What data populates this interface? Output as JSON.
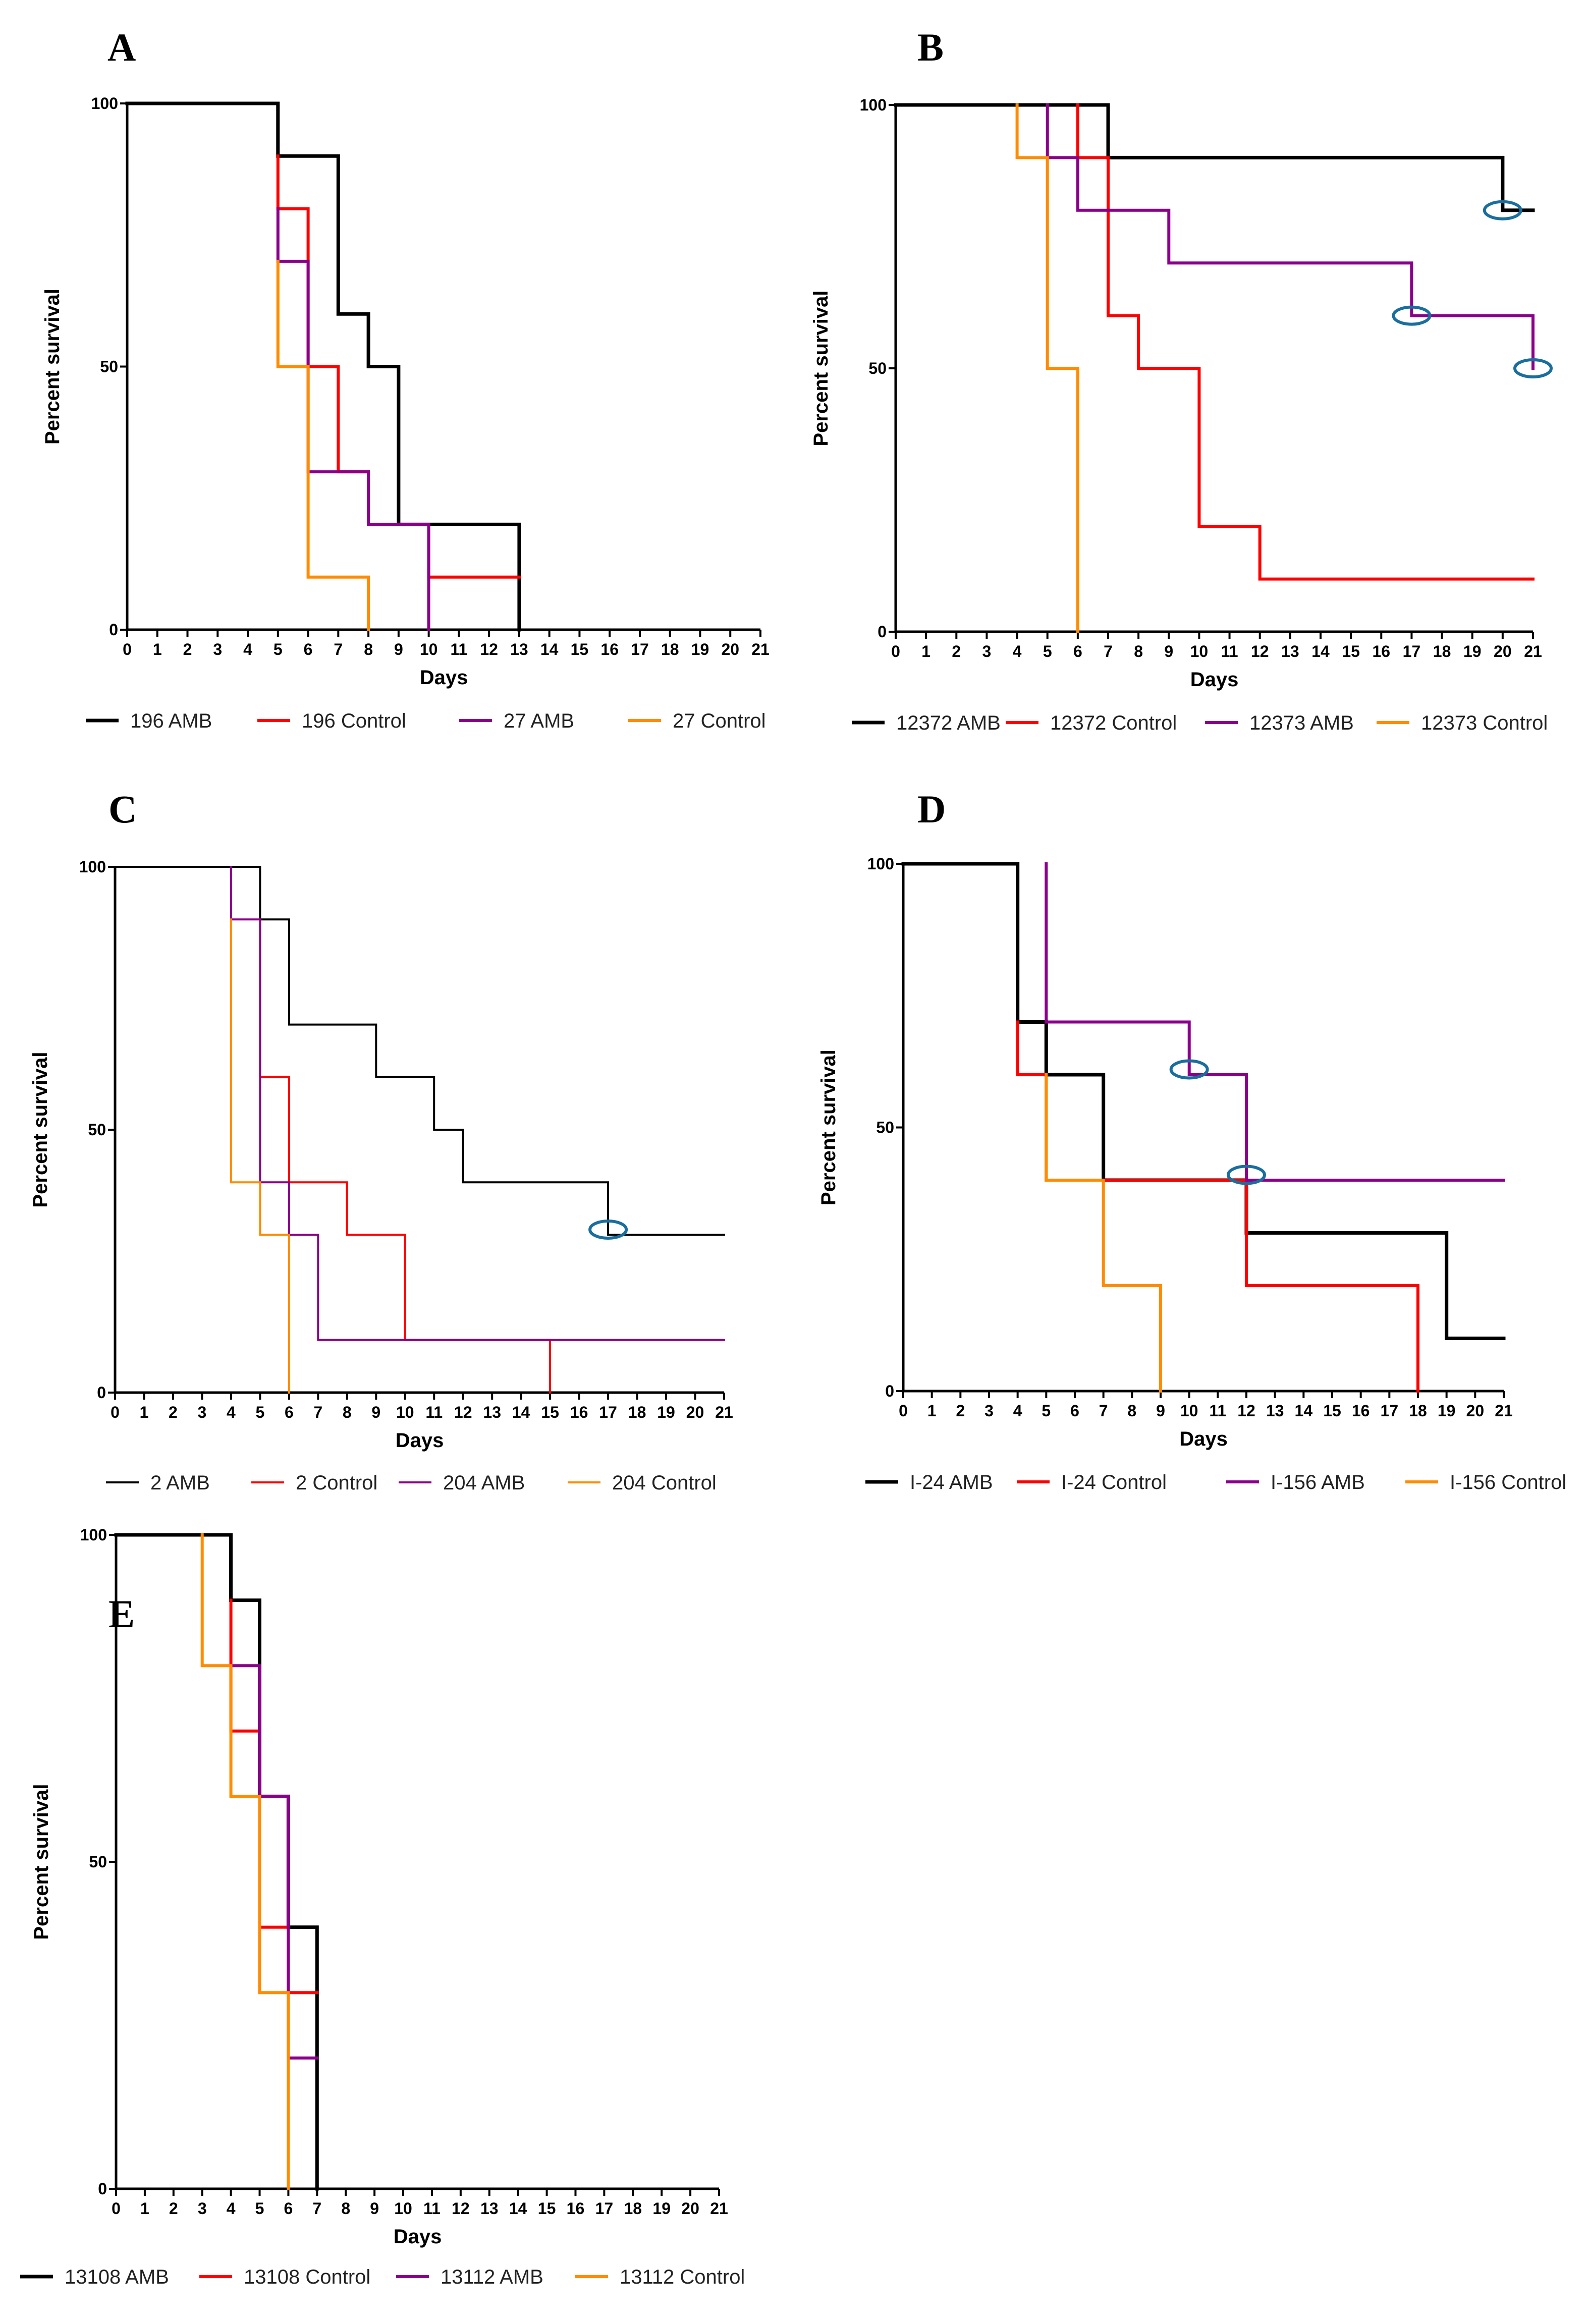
{
  "chart_data": [
    {
      "panel": "A",
      "type": "line",
      "step": true,
      "xlabel": "Days",
      "ylabel": "Percent survival",
      "xlim": [
        0,
        21
      ],
      "ylim": [
        0,
        100
      ],
      "xticks": [
        0,
        1,
        2,
        3,
        4,
        5,
        6,
        7,
        8,
        9,
        10,
        11,
        12,
        13,
        14,
        15,
        16,
        17,
        18,
        19,
        20,
        21
      ],
      "yticks": [
        0,
        50,
        100
      ],
      "series": [
        {
          "name": "196 AMB",
          "color": "#000000",
          "width": 7,
          "points": [
            [
              0,
              100
            ],
            [
              5,
              100
            ],
            [
              5,
              90
            ],
            [
              7,
              90
            ],
            [
              7,
              60
            ],
            [
              8,
              60
            ],
            [
              8,
              50
            ],
            [
              9,
              50
            ],
            [
              9,
              20
            ],
            [
              13,
              20
            ],
            [
              13,
              0
            ]
          ],
          "censored": []
        },
        {
          "name": "196 Control",
          "color": "#ff0000",
          "width": 6,
          "points": [
            [
              5,
              90
            ],
            [
              5,
              80
            ],
            [
              6,
              80
            ],
            [
              6,
              50
            ],
            [
              7,
              50
            ],
            [
              7,
              30
            ],
            [
              8,
              30
            ],
            [
              8,
              20
            ],
            [
              10,
              20
            ],
            [
              10,
              10
            ],
            [
              13,
              10
            ]
          ],
          "censored": []
        },
        {
          "name": "27 AMB",
          "color": "#8b008b",
          "width": 6,
          "points": [
            [
              5,
              80
            ],
            [
              5,
              70
            ],
            [
              6,
              70
            ],
            [
              6,
              30
            ],
            [
              8,
              30
            ],
            [
              8,
              20
            ],
            [
              10,
              20
            ],
            [
              10,
              0
            ]
          ],
          "censored": []
        },
        {
          "name": "27 Control",
          "color": "#ff8c00",
          "width": 6,
          "points": [
            [
              5,
              70
            ],
            [
              5,
              50
            ],
            [
              6,
              50
            ],
            [
              6,
              10
            ],
            [
              8,
              10
            ],
            [
              8,
              0
            ]
          ],
          "censored": []
        }
      ]
    },
    {
      "panel": "B",
      "type": "line",
      "step": true,
      "xlabel": "Days",
      "ylabel": "Percent survival",
      "xlim": [
        0,
        21
      ],
      "ylim": [
        0,
        100
      ],
      "xticks": [
        0,
        1,
        2,
        3,
        4,
        5,
        6,
        7,
        8,
        9,
        10,
        11,
        12,
        13,
        14,
        15,
        16,
        17,
        18,
        19,
        20,
        21
      ],
      "yticks": [
        0,
        50,
        100
      ],
      "series": [
        {
          "name": "12372 AMB",
          "color": "#000000",
          "width": 7,
          "points": [
            [
              0,
              100
            ],
            [
              7,
              100
            ],
            [
              7,
              90
            ],
            [
              20,
              90
            ],
            [
              20,
              80
            ],
            [
              21,
              80
            ]
          ],
          "censored": [
            [
              20,
              80
            ]
          ]
        },
        {
          "name": "12372 Control",
          "color": "#ff0000",
          "width": 6,
          "points": [
            [
              6,
              100
            ],
            [
              6,
              90
            ],
            [
              7,
              90
            ],
            [
              7,
              60
            ],
            [
              8,
              60
            ],
            [
              8,
              50
            ],
            [
              10,
              50
            ],
            [
              10,
              20
            ],
            [
              12,
              20
            ],
            [
              12,
              10
            ],
            [
              21,
              10
            ]
          ],
          "censored": []
        },
        {
          "name": "12373 AMB",
          "color": "#8b008b",
          "width": 6,
          "points": [
            [
              5,
              100
            ],
            [
              5,
              90
            ],
            [
              6,
              90
            ],
            [
              6,
              80
            ],
            [
              9,
              80
            ],
            [
              9,
              70
            ],
            [
              17,
              70
            ],
            [
              17,
              60
            ],
            [
              21,
              60
            ],
            [
              21,
              50
            ]
          ],
          "censored": [
            [
              17,
              60
            ],
            [
              21,
              50
            ]
          ]
        },
        {
          "name": "12373 Control",
          "color": "#ff8c00",
          "width": 6,
          "points": [
            [
              4,
              100
            ],
            [
              4,
              90
            ],
            [
              5,
              90
            ],
            [
              5,
              50
            ],
            [
              6,
              50
            ],
            [
              6,
              0
            ]
          ],
          "censored": []
        }
      ]
    },
    {
      "panel": "C",
      "type": "line",
      "step": true,
      "xlabel": "Days",
      "ylabel": "Percent survival",
      "xlim": [
        0,
        21
      ],
      "ylim": [
        0,
        100
      ],
      "xticks": [
        0,
        1,
        2,
        3,
        4,
        5,
        6,
        7,
        8,
        9,
        10,
        11,
        12,
        13,
        14,
        15,
        16,
        17,
        18,
        19,
        20,
        21
      ],
      "yticks": [
        0,
        50,
        100
      ],
      "series": [
        {
          "name": "2 AMB",
          "color": "#000000",
          "width": 4,
          "points": [
            [
              0,
              100
            ],
            [
              5,
              100
            ],
            [
              5,
              90
            ],
            [
              6,
              90
            ],
            [
              6,
              70
            ],
            [
              9,
              70
            ],
            [
              9,
              60
            ],
            [
              11,
              60
            ],
            [
              11,
              50
            ],
            [
              12,
              50
            ],
            [
              12,
              40
            ],
            [
              17,
              40
            ],
            [
              17,
              30
            ],
            [
              21,
              30
            ]
          ],
          "censored": [
            [
              17,
              31
            ]
          ]
        },
        {
          "name": "2 Control",
          "color": "#ff0000",
          "width": 4,
          "points": [
            [
              5,
              90
            ],
            [
              5,
              60
            ],
            [
              6,
              60
            ],
            [
              6,
              40
            ],
            [
              8,
              40
            ],
            [
              8,
              30
            ],
            [
              10,
              30
            ],
            [
              10,
              10
            ],
            [
              15,
              10
            ],
            [
              15,
              0
            ]
          ],
          "censored": []
        },
        {
          "name": "204 AMB",
          "color": "#8b008b",
          "width": 4,
          "points": [
            [
              4,
              100
            ],
            [
              4,
              90
            ],
            [
              5,
              90
            ],
            [
              5,
              40
            ],
            [
              6,
              40
            ],
            [
              6,
              30
            ],
            [
              7,
              30
            ],
            [
              7,
              10
            ],
            [
              21,
              10
            ]
          ],
          "censored": []
        },
        {
          "name": "204 Control",
          "color": "#ff8c00",
          "width": 4,
          "points": [
            [
              4,
              90
            ],
            [
              4,
              40
            ],
            [
              5,
              40
            ],
            [
              5,
              30
            ],
            [
              6,
              30
            ],
            [
              6,
              0
            ]
          ],
          "censored": []
        }
      ]
    },
    {
      "panel": "D",
      "type": "line",
      "step": true,
      "xlabel": "Days",
      "ylabel": "Percent survival",
      "xlim": [
        0,
        21
      ],
      "ylim": [
        0,
        100
      ],
      "xticks": [
        0,
        1,
        2,
        3,
        4,
        5,
        6,
        7,
        8,
        9,
        10,
        11,
        12,
        13,
        14,
        15,
        16,
        17,
        18,
        19,
        20,
        21
      ],
      "yticks": [
        0,
        50,
        100
      ],
      "series": [
        {
          "name": "I-24 AMB",
          "color": "#000000",
          "width": 7,
          "points": [
            [
              0,
              100
            ],
            [
              4,
              100
            ],
            [
              4,
              70
            ],
            [
              5,
              70
            ],
            [
              5,
              60
            ],
            [
              7,
              60
            ],
            [
              7,
              40
            ],
            [
              12,
              40
            ],
            [
              12,
              30
            ],
            [
              19,
              30
            ],
            [
              19,
              10
            ],
            [
              21,
              10
            ]
          ],
          "censored": []
        },
        {
          "name": "I-24 Control",
          "color": "#ff0000",
          "width": 6,
          "points": [
            [
              4,
              70
            ],
            [
              4,
              60
            ],
            [
              5,
              60
            ],
            [
              5,
              40
            ],
            [
              7,
              40
            ],
            [
              12,
              40
            ],
            [
              12,
              20
            ],
            [
              18,
              20
            ],
            [
              18,
              0
            ]
          ],
          "censored": []
        },
        {
          "name": "I-156 AMB",
          "color": "#8b008b",
          "width": 6,
          "points": [
            [
              5,
              100
            ],
            [
              5,
              70
            ],
            [
              10,
              70
            ],
            [
              10,
              60
            ],
            [
              12,
              60
            ],
            [
              12,
              40
            ],
            [
              21,
              40
            ]
          ],
          "censored": [
            [
              10,
              61
            ],
            [
              12,
              41
            ]
          ]
        },
        {
          "name": "I-156 Control",
          "color": "#ff8c00",
          "width": 6,
          "points": [
            [
              5,
              60
            ],
            [
              5,
              40
            ],
            [
              7,
              40
            ],
            [
              7,
              20
            ],
            [
              9,
              20
            ],
            [
              9,
              0
            ]
          ],
          "censored": []
        }
      ]
    },
    {
      "panel": "E",
      "type": "line",
      "step": true,
      "xlabel": "Days",
      "ylabel": "Percent survival",
      "xlim": [
        0,
        21
      ],
      "ylim": [
        0,
        100
      ],
      "xticks": [
        0,
        1,
        2,
        3,
        4,
        5,
        6,
        7,
        8,
        9,
        10,
        11,
        12,
        13,
        14,
        15,
        16,
        17,
        18,
        19,
        20,
        21
      ],
      "yticks": [
        0,
        50,
        100
      ],
      "series": [
        {
          "name": "13108 AMB",
          "color": "#000000",
          "width": 7,
          "points": [
            [
              0,
              100
            ],
            [
              4,
              100
            ],
            [
              4,
              90
            ],
            [
              5,
              90
            ],
            [
              5,
              60
            ],
            [
              6,
              60
            ],
            [
              6,
              40
            ],
            [
              7,
              40
            ],
            [
              7,
              0
            ]
          ],
          "censored": []
        },
        {
          "name": "13108 Control",
          "color": "#ff0000",
          "width": 6,
          "points": [
            [
              4,
              90
            ],
            [
              4,
              70
            ],
            [
              5,
              70
            ],
            [
              5,
              40
            ],
            [
              6,
              40
            ],
            [
              6,
              30
            ],
            [
              7,
              30
            ]
          ],
          "censored": []
        },
        {
          "name": "13112 AMB",
          "color": "#8b008b",
          "width": 6,
          "points": [
            [
              4,
              80
            ],
            [
              5,
              80
            ],
            [
              5,
              60
            ],
            [
              6,
              60
            ],
            [
              6,
              20
            ],
            [
              7,
              20
            ]
          ],
          "censored": []
        },
        {
          "name": "13112 Control",
          "color": "#ff8c00",
          "width": 6,
          "points": [
            [
              3,
              100
            ],
            [
              3,
              80
            ],
            [
              4,
              80
            ],
            [
              4,
              60
            ],
            [
              5,
              60
            ],
            [
              5,
              30
            ],
            [
              6,
              30
            ],
            [
              6,
              0
            ]
          ],
          "censored": []
        }
      ]
    }
  ]
}
